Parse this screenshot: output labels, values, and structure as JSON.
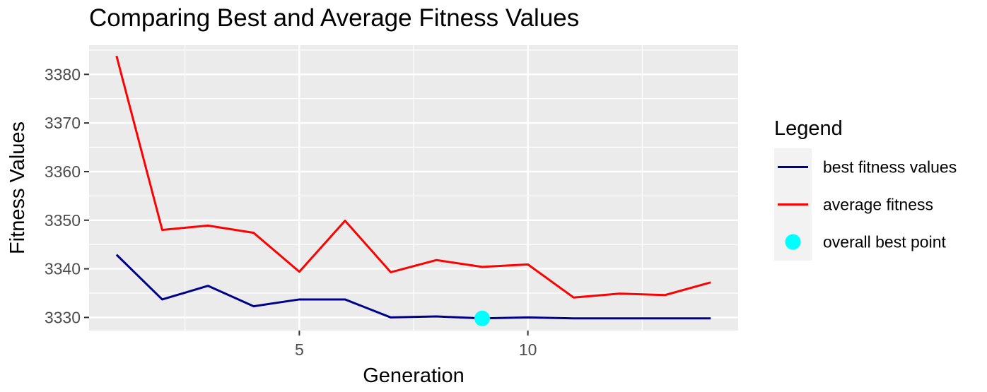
{
  "chart_data": {
    "type": "line",
    "title": "Comparing Best and Average Fitness Values",
    "xlabel": "Generation",
    "ylabel": "Fitness Values",
    "xlim": [
      0.4,
      14.6
    ],
    "ylim": [
      3327.3,
      3386.0
    ],
    "x_ticks": [
      5,
      10
    ],
    "x_tick_labels": [
      "5",
      "10"
    ],
    "y_ticks": [
      3330,
      3340,
      3350,
      3360,
      3370,
      3380
    ],
    "y_tick_labels": [
      "3330",
      "3340",
      "3350",
      "3360",
      "3370",
      "3380"
    ],
    "x": [
      1,
      2,
      3,
      4,
      5,
      6,
      7,
      8,
      9,
      10,
      11,
      12,
      13,
      14
    ],
    "series": [
      {
        "name": "best fitness values",
        "color": "#00008B",
        "values": [
          3342.9,
          3333.7,
          3336.5,
          3332.3,
          3333.7,
          3333.7,
          3330.0,
          3330.2,
          3329.8,
          3330.0,
          3329.8,
          3329.8,
          3329.8,
          3329.8
        ]
      },
      {
        "name": "average fitness",
        "color": "#FF0000",
        "values": [
          3383.8,
          3348.0,
          3348.9,
          3347.4,
          3339.4,
          3349.9,
          3339.3,
          3341.8,
          3340.4,
          3340.9,
          3334.1,
          3334.9,
          3334.6,
          3337.2
        ]
      }
    ],
    "points": [
      {
        "name": "overall best point",
        "color": "#00FFFF",
        "x": 9,
        "y": 3329.8
      }
    ],
    "legend": {
      "title": "Legend",
      "position": "right"
    },
    "grid": true,
    "panel_background": "#EBEBEB",
    "grid_color": "#FFFFFF"
  }
}
